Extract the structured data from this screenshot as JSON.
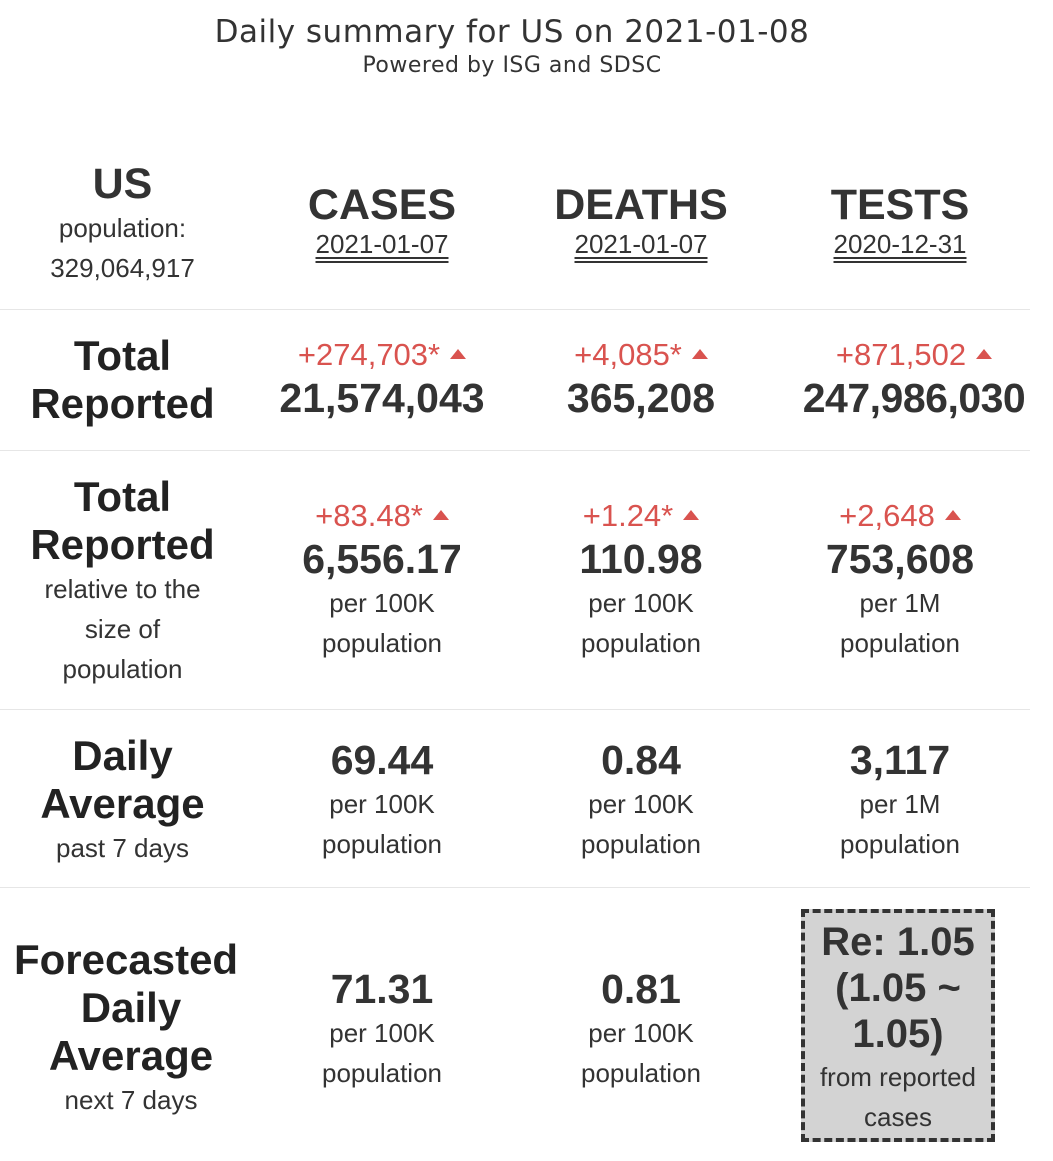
{
  "header": {
    "title": "Daily summary for US on 2021-01-08",
    "subtitle": "Powered by ISG and SDSC"
  },
  "region": {
    "name": "US",
    "population_label": "population:",
    "population_value": "329,064,917"
  },
  "columns": {
    "cases": {
      "title": "CASES",
      "date": "2021-01-07"
    },
    "deaths": {
      "title": "DEATHS",
      "date": "2021-01-07"
    },
    "tests": {
      "title": "TESTS",
      "date": "2020-12-31"
    }
  },
  "total_reported": {
    "label_line1": "Total",
    "label_line2": "Reported",
    "cases": {
      "delta": "+274,703*",
      "value": "21,574,043"
    },
    "deaths": {
      "delta": "+4,085*",
      "value": "365,208"
    },
    "tests": {
      "delta": "+871,502",
      "value": "247,986,030"
    }
  },
  "relative": {
    "label_line1": "Total",
    "label_line2": "Reported",
    "sub_line1": "relative to the",
    "sub_line2": "size of",
    "sub_line3": "population",
    "cases": {
      "delta": "+83.48*",
      "value": "6,556.17",
      "unit_line1": "per 100K",
      "unit_line2": "population"
    },
    "deaths": {
      "delta": "+1.24*",
      "value": "110.98",
      "unit_line1": "per 100K",
      "unit_line2": "population"
    },
    "tests": {
      "delta": "+2,648",
      "value": "753,608",
      "unit_line1": "per 1M",
      "unit_line2": "population"
    }
  },
  "daily_average": {
    "label_line1": "Daily",
    "label_line2": "Average",
    "sub": "past 7 days",
    "cases": {
      "value": "69.44",
      "unit_line1": "per 100K",
      "unit_line2": "population"
    },
    "deaths": {
      "value": "0.84",
      "unit_line1": "per 100K",
      "unit_line2": "population"
    },
    "tests": {
      "value": "3,117",
      "unit_line1": "per 1M",
      "unit_line2": "population"
    }
  },
  "forecast": {
    "label_line1": "Forecasted",
    "label_line2": "Daily",
    "label_line3": "Average",
    "sub": "next 7 days",
    "cases": {
      "value": "71.31",
      "unit_line1": "per 100K",
      "unit_line2": "population"
    },
    "deaths": {
      "value": "0.81",
      "unit_line1": "per 100K",
      "unit_line2": "population"
    },
    "re": {
      "line1": "Re: 1.05",
      "line2": "(1.05 ~",
      "line3": "1.05)",
      "sub_line1": "from reported",
      "sub_line2": "cases"
    }
  },
  "colors": {
    "increase": "#d9534f",
    "text": "#333333",
    "re_box": "#d3d3d3"
  },
  "icons": {
    "increase": "triangle-up-icon"
  }
}
